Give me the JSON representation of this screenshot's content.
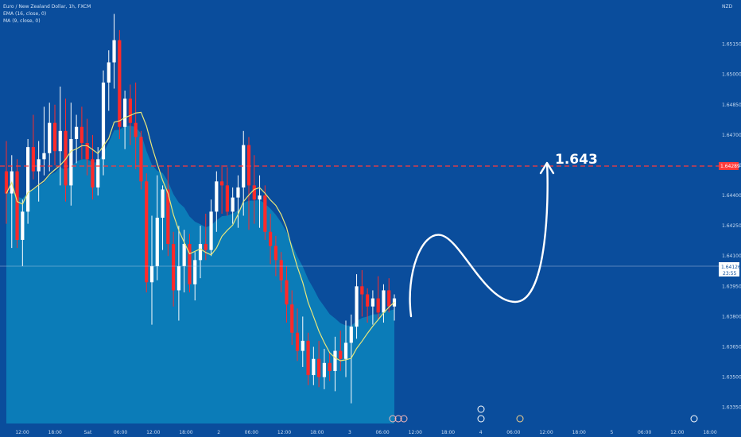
{
  "header": {
    "symbol_line": "Euro / New Zealand Dollar, 1h, FXCM",
    "ema_line": "EMA (16, close, 0)",
    "ma_line": "MA (9, close, 0)",
    "currency": "NZD"
  },
  "colors": {
    "background": "#0a4d9c",
    "area_fill": "#0d8fc4",
    "up_candle": "#ffffff",
    "down_candle": "#ff2a2a",
    "ma_line": "#e7e67a",
    "target_line": "#ff3b3b",
    "arrow": "#ffffff"
  },
  "chart_data": {
    "type": "candlestick",
    "y_axis_labels": [
      "1.65150",
      "1.65000",
      "1.64850",
      "1.64700",
      "1.64550",
      "1.64400",
      "1.64250",
      "1.64100",
      "1.63950",
      "1.63800",
      "1.63650",
      "1.63500",
      "1.63350"
    ],
    "ylim": [
      1.6327,
      1.6531
    ],
    "x_axis_labels": [
      "12:00",
      "18:00",
      "Sat",
      "06:00",
      "12:00",
      "18:00",
      "2",
      "06:00",
      "12:00",
      "18:00",
      "3",
      "06:00",
      "12:00",
      "18:00",
      "4",
      "06:00",
      "12:00",
      "18:00",
      "5",
      "06:00",
      "12:00",
      "18:00"
    ],
    "candles": [
      {
        "o": 1.6452,
        "h": 1.6467,
        "l": 1.6426,
        "c": 1.6441
      },
      {
        "o": 1.6441,
        "h": 1.646,
        "l": 1.6414,
        "c": 1.6452
      },
      {
        "o": 1.6452,
        "h": 1.6458,
        "l": 1.6414,
        "c": 1.6418
      },
      {
        "o": 1.6418,
        "h": 1.6438,
        "l": 1.6405,
        "c": 1.6432
      },
      {
        "o": 1.6432,
        "h": 1.6468,
        "l": 1.6426,
        "c": 1.6464
      },
      {
        "o": 1.6464,
        "h": 1.648,
        "l": 1.6448,
        "c": 1.6452
      },
      {
        "o": 1.6452,
        "h": 1.6467,
        "l": 1.6437,
        "c": 1.6458
      },
      {
        "o": 1.6458,
        "h": 1.6484,
        "l": 1.645,
        "c": 1.6461
      },
      {
        "o": 1.6461,
        "h": 1.6486,
        "l": 1.6452,
        "c": 1.6476
      },
      {
        "o": 1.6476,
        "h": 1.6485,
        "l": 1.6455,
        "c": 1.6462
      },
      {
        "o": 1.6462,
        "h": 1.6494,
        "l": 1.6445,
        "c": 1.6472
      },
      {
        "o": 1.6472,
        "h": 1.6488,
        "l": 1.6437,
        "c": 1.6445
      },
      {
        "o": 1.6445,
        "h": 1.6486,
        "l": 1.6435,
        "c": 1.6468
      },
      {
        "o": 1.6468,
        "h": 1.648,
        "l": 1.6456,
        "c": 1.6474
      },
      {
        "o": 1.6474,
        "h": 1.6484,
        "l": 1.6458,
        "c": 1.6466
      },
      {
        "o": 1.6466,
        "h": 1.6478,
        "l": 1.645,
        "c": 1.6458
      },
      {
        "o": 1.6458,
        "h": 1.647,
        "l": 1.6438,
        "c": 1.6444
      },
      {
        "o": 1.6444,
        "h": 1.6464,
        "l": 1.644,
        "c": 1.6458
      },
      {
        "o": 1.6458,
        "h": 1.6502,
        "l": 1.645,
        "c": 1.6496
      },
      {
        "o": 1.6496,
        "h": 1.6512,
        "l": 1.6482,
        "c": 1.6506
      },
      {
        "o": 1.6506,
        "h": 1.653,
        "l": 1.6493,
        "c": 1.6517
      },
      {
        "o": 1.6517,
        "h": 1.6522,
        "l": 1.6468,
        "c": 1.6474
      },
      {
        "o": 1.6474,
        "h": 1.6492,
        "l": 1.6463,
        "c": 1.6488
      },
      {
        "o": 1.6488,
        "h": 1.6495,
        "l": 1.6465,
        "c": 1.6476
      },
      {
        "o": 1.6476,
        "h": 1.6496,
        "l": 1.6453,
        "c": 1.6469
      },
      {
        "o": 1.6469,
        "h": 1.6472,
        "l": 1.6443,
        "c": 1.6447
      },
      {
        "o": 1.6447,
        "h": 1.6451,
        "l": 1.6392,
        "c": 1.6397
      },
      {
        "o": 1.6397,
        "h": 1.643,
        "l": 1.6376,
        "c": 1.6405
      },
      {
        "o": 1.6405,
        "h": 1.645,
        "l": 1.6398,
        "c": 1.6429
      },
      {
        "o": 1.6429,
        "h": 1.6445,
        "l": 1.6413,
        "c": 1.6443
      },
      {
        "o": 1.6443,
        "h": 1.6455,
        "l": 1.641,
        "c": 1.6416
      },
      {
        "o": 1.6416,
        "h": 1.6422,
        "l": 1.6385,
        "c": 1.6393
      },
      {
        "o": 1.6393,
        "h": 1.6425,
        "l": 1.6378,
        "c": 1.6405
      },
      {
        "o": 1.6405,
        "h": 1.6423,
        "l": 1.6392,
        "c": 1.6416
      },
      {
        "o": 1.6416,
        "h": 1.6421,
        "l": 1.6392,
        "c": 1.6396
      },
      {
        "o": 1.6396,
        "h": 1.6412,
        "l": 1.6388,
        "c": 1.6408
      },
      {
        "o": 1.6408,
        "h": 1.6425,
        "l": 1.6399,
        "c": 1.6416
      },
      {
        "o": 1.6416,
        "h": 1.6431,
        "l": 1.6408,
        "c": 1.6413
      },
      {
        "o": 1.6413,
        "h": 1.6438,
        "l": 1.641,
        "c": 1.6432
      },
      {
        "o": 1.6432,
        "h": 1.6452,
        "l": 1.6422,
        "c": 1.6447
      },
      {
        "o": 1.6447,
        "h": 1.6455,
        "l": 1.6431,
        "c": 1.6445
      },
      {
        "o": 1.6445,
        "h": 1.6454,
        "l": 1.643,
        "c": 1.6432
      },
      {
        "o": 1.6432,
        "h": 1.6444,
        "l": 1.6426,
        "c": 1.6439
      },
      {
        "o": 1.6439,
        "h": 1.645,
        "l": 1.6424,
        "c": 1.6444
      },
      {
        "o": 1.6444,
        "h": 1.6472,
        "l": 1.643,
        "c": 1.6465
      },
      {
        "o": 1.6465,
        "h": 1.6469,
        "l": 1.6423,
        "c": 1.6445
      },
      {
        "o": 1.6445,
        "h": 1.646,
        "l": 1.6426,
        "c": 1.6438
      },
      {
        "o": 1.6438,
        "h": 1.645,
        "l": 1.6424,
        "c": 1.644
      },
      {
        "o": 1.644,
        "h": 1.6445,
        "l": 1.6418,
        "c": 1.6422
      },
      {
        "o": 1.6422,
        "h": 1.6431,
        "l": 1.6406,
        "c": 1.6415
      },
      {
        "o": 1.6415,
        "h": 1.642,
        "l": 1.64,
        "c": 1.6408
      },
      {
        "o": 1.6408,
        "h": 1.6412,
        "l": 1.6392,
        "c": 1.6398
      },
      {
        "o": 1.6398,
        "h": 1.6405,
        "l": 1.6377,
        "c": 1.6386
      },
      {
        "o": 1.6386,
        "h": 1.6393,
        "l": 1.6366,
        "c": 1.6372
      },
      {
        "o": 1.6372,
        "h": 1.6384,
        "l": 1.6358,
        "c": 1.6363
      },
      {
        "o": 1.6363,
        "h": 1.638,
        "l": 1.6355,
        "c": 1.6368
      },
      {
        "o": 1.6368,
        "h": 1.6372,
        "l": 1.6346,
        "c": 1.6351
      },
      {
        "o": 1.6351,
        "h": 1.6365,
        "l": 1.6346,
        "c": 1.6359
      },
      {
        "o": 1.6359,
        "h": 1.6368,
        "l": 1.6345,
        "c": 1.635
      },
      {
        "o": 1.635,
        "h": 1.6364,
        "l": 1.6344,
        "c": 1.6357
      },
      {
        "o": 1.6357,
        "h": 1.6362,
        "l": 1.6348,
        "c": 1.6353
      },
      {
        "o": 1.6353,
        "h": 1.637,
        "l": 1.6343,
        "c": 1.6363
      },
      {
        "o": 1.6363,
        "h": 1.6373,
        "l": 1.6353,
        "c": 1.6359
      },
      {
        "o": 1.6359,
        "h": 1.6378,
        "l": 1.635,
        "c": 1.6367
      },
      {
        "o": 1.6367,
        "h": 1.6381,
        "l": 1.6337,
        "c": 1.6375
      },
      {
        "o": 1.6375,
        "h": 1.6401,
        "l": 1.6369,
        "c": 1.6395
      },
      {
        "o": 1.6395,
        "h": 1.6403,
        "l": 1.638,
        "c": 1.6391
      },
      {
        "o": 1.6391,
        "h": 1.6394,
        "l": 1.6377,
        "c": 1.6385
      },
      {
        "o": 1.6385,
        "h": 1.6393,
        "l": 1.6376,
        "c": 1.6389
      },
      {
        "o": 1.6389,
        "h": 1.64,
        "l": 1.6379,
        "c": 1.6382
      },
      {
        "o": 1.6382,
        "h": 1.6396,
        "l": 1.6377,
        "c": 1.6393
      },
      {
        "o": 1.6393,
        "h": 1.6399,
        "l": 1.6382,
        "c": 1.6385
      },
      {
        "o": 1.6385,
        "h": 1.6391,
        "l": 1.6378,
        "c": 1.6389
      }
    ],
    "price_line": {
      "value": 1.64126,
      "label": "1.64126",
      "countdown": "23:55"
    },
    "target_line": {
      "value": 1.6429,
      "label": "1.64289"
    },
    "annotation": "1.643"
  }
}
